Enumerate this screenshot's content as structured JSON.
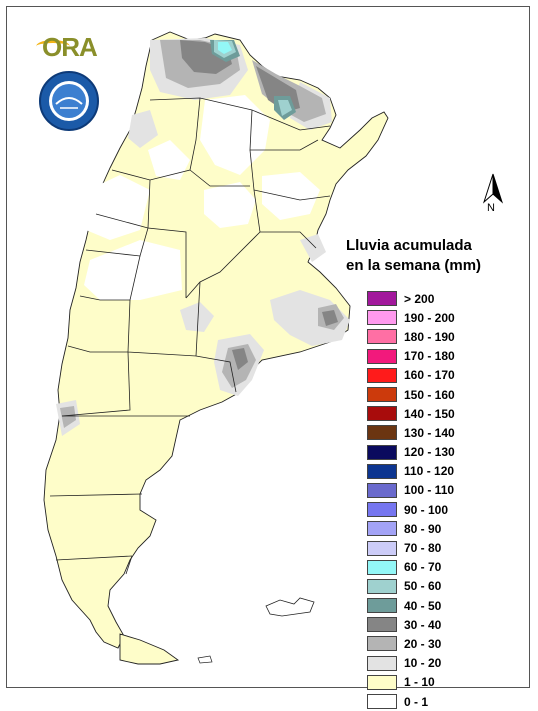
{
  "legend": {
    "title_line1": "Lluvia acumulada",
    "title_line2": "en la semana (mm)",
    "items": [
      {
        "label": "> 200",
        "color": "#a2189c"
      },
      {
        "label": "190 - 200",
        "color": "#ff99ee"
      },
      {
        "label": "180 - 190",
        "color": "#ff6fa4"
      },
      {
        "label": "170 - 180",
        "color": "#f2197c"
      },
      {
        "label": "160 - 170",
        "color": "#ff1b1b"
      },
      {
        "label": "150 - 160",
        "color": "#cc3a0c"
      },
      {
        "label": "140 - 150",
        "color": "#a80c0c"
      },
      {
        "label": "130 - 140",
        "color": "#6b3511"
      },
      {
        "label": "120 - 130",
        "color": "#0a0a5e"
      },
      {
        "label": "110 - 120",
        "color": "#0d3590"
      },
      {
        "label": "100 - 110",
        "color": "#6a6acd"
      },
      {
        "label": "90 - 100",
        "color": "#7676f0"
      },
      {
        "label": "80 - 90",
        "color": "#a3a3f6"
      },
      {
        "label": "70 - 80",
        "color": "#ccccf8"
      },
      {
        "label": "60 - 70",
        "color": "#93f7f7"
      },
      {
        "label": "50 - 60",
        "color": "#9fd1cf"
      },
      {
        "label": "40 - 50",
        "color": "#6e9c9a"
      },
      {
        "label": "30 - 40",
        "color": "#858585"
      },
      {
        "label": "20 - 30",
        "color": "#b4b4b4"
      },
      {
        "label": "10 - 20",
        "color": "#e3e3e3"
      },
      {
        "label": "1 - 10",
        "color": "#fefdc9"
      },
      {
        "label": "0 - 1",
        "color": "#ffffff"
      }
    ]
  },
  "north_arrow": {
    "label": "N"
  },
  "logos": {
    "ora": "ORA",
    "smn": "smn-seal"
  },
  "colors": {
    "land_base": "#fefdc9",
    "border": "#222222"
  }
}
